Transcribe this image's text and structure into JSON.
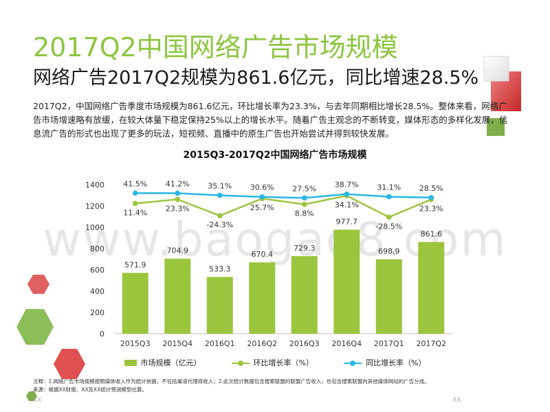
{
  "title": "2017Q2中国网络广告市场规模",
  "subtitle": "网络广告2017Q2规模为861.6亿元，同比增速28.5%",
  "body_text": "2017Q2，中国网络广告季度市场规模为861.6亿元，环比增长率为23.3%，与去年同期相比增长28.5%。整体来看，网络广告市场增速略有放缓，在较大体量下稳定保持25%以上的增长水平。随着广告主观念的不断转变，媒体形态的多样化发展，信息流广告的形式也出现了更多的玩法，短视频、直播中的原生广告也开始尝试并得到较快发展。",
  "note_line1": "注释：1.网络广告市场规模按照媒体收入作为统计依据，不包括渠道代理商收入；2.此次统计数据包含搜索联盟的联盟广告收入，也包含搜索联盟向其他媒体网站的广告分成。",
  "note_line2": "来源：根据XX财报、XX及XX统计预测模型估算。",
  "footer_left": "XX",
  "footer_right": "XX",
  "watermark": "www.baogao8.com",
  "colors": {
    "bar": "#9bc53d",
    "qoq": "#9bc53d",
    "yoy": "#29b6e8",
    "title": "#8cc63f"
  },
  "chart_data": {
    "type": "bar",
    "title": "2015Q3-2017Q2中国网络广告市场规模",
    "categories": [
      "2015Q3",
      "2015Q4",
      "2016Q1",
      "2016Q2",
      "2016Q3",
      "2016Q4",
      "2017Q1",
      "2017Q2"
    ],
    "ylim": [
      0,
      1400
    ],
    "yticks": [
      0,
      200,
      400,
      600,
      800,
      1000,
      1200,
      1400
    ],
    "grid": false,
    "legend_position": "bottom",
    "series": [
      {
        "name": "市场规模（亿元）",
        "type": "bar",
        "values": [
          571.9,
          704.9,
          533.3,
          670.4,
          729.3,
          977.7,
          698.9,
          861.6
        ],
        "labels": [
          "571.9",
          "704.9",
          "533.3",
          "670.4",
          "729.3",
          "977.7",
          "698.9",
          "861.6"
        ]
      },
      {
        "name": "环比增长率（%）",
        "type": "line",
        "values": [
          11.4,
          23.3,
          -24.3,
          25.7,
          8.8,
          34.1,
          -28.5,
          23.3
        ],
        "labels": [
          "11.4%",
          "23.3%",
          "-24.3%",
          "25.7%",
          "8.8%",
          "34.1%",
          "-28.5%",
          "23.3%"
        ]
      },
      {
        "name": "同比增长率（%）",
        "type": "line",
        "values": [
          41.5,
          41.2,
          35.1,
          30.6,
          27.5,
          38.7,
          31.1,
          28.5
        ],
        "labels": [
          "41.5%",
          "41.2%",
          "35.1%",
          "30.6%",
          "27.5%",
          "38.7%",
          "31.1%",
          "28.5%"
        ]
      }
    ]
  }
}
